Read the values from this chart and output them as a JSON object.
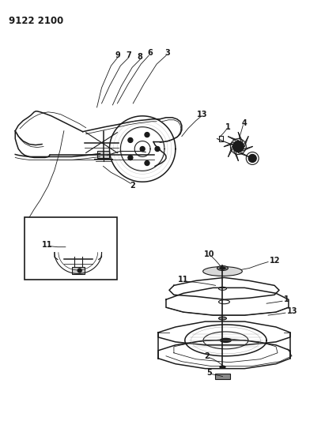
{
  "title_code": "9122 2100",
  "bg_color": "#ffffff",
  "line_color": "#1a1a1a",
  "fig_width": 4.11,
  "fig_height": 5.33,
  "dpi": 100
}
